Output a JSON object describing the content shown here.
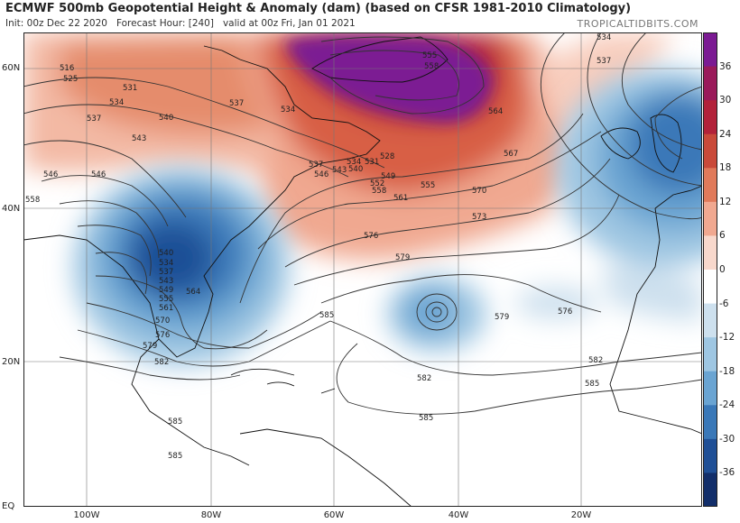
{
  "header": {
    "title": "ECMWF 500mb Geopotential Height & Anomaly (dam) (based on CFSR 1981-2010 Climatology)",
    "init": "Init: 00z Dec 22 2020",
    "forecast_hour": "Forecast Hour: [240]",
    "valid": "valid at 00z Fri, Jan 01 2021",
    "brand": "TROPICALTIDBITS.COM"
  },
  "axes": {
    "lat_labels": [
      "60N",
      "40N",
      "20N",
      "EQ"
    ],
    "lon_labels": [
      "100W",
      "80W",
      "60W",
      "40W",
      "20W"
    ]
  },
  "colorbar": {
    "labels": [
      "36",
      "30",
      "24",
      "18",
      "12",
      "6",
      "0",
      "-6",
      "-12",
      "-18",
      "-24",
      "-30",
      "-36"
    ],
    "colors": [
      "#7b1a93",
      "#9a1a5a",
      "#b2223a",
      "#c94a3a",
      "#e07a5a",
      "#f0a890",
      "#f8d8cc",
      "#ffffff",
      "#cde0ee",
      "#9ec6e2",
      "#6aa4d2",
      "#3a78b8",
      "#1f4f96",
      "#122e6a"
    ]
  },
  "contour_labels": [
    {
      "text": "516"
    },
    {
      "text": "525"
    },
    {
      "text": "531"
    },
    {
      "text": "534"
    },
    {
      "text": "537"
    },
    {
      "text": "540"
    },
    {
      "text": "543"
    },
    {
      "text": "546"
    },
    {
      "text": "537"
    },
    {
      "text": "534"
    },
    {
      "text": "528"
    },
    {
      "text": "531"
    },
    {
      "text": "534"
    },
    {
      "text": "537"
    },
    {
      "text": "540"
    },
    {
      "text": "543"
    },
    {
      "text": "546"
    },
    {
      "text": "549"
    },
    {
      "text": "552"
    },
    {
      "text": "555"
    },
    {
      "text": "558"
    },
    {
      "text": "561"
    },
    {
      "text": "564"
    },
    {
      "text": "567"
    },
    {
      "text": "570"
    },
    {
      "text": "573"
    },
    {
      "text": "576"
    },
    {
      "text": "579"
    },
    {
      "text": "579"
    },
    {
      "text": "576"
    },
    {
      "text": "582"
    },
    {
      "text": "585"
    },
    {
      "text": "585"
    },
    {
      "text": "582"
    },
    {
      "text": "585"
    },
    {
      "text": "558"
    },
    {
      "text": "546"
    },
    {
      "text": "534"
    },
    {
      "text": "537"
    },
    {
      "text": "555"
    },
    {
      "text": "558"
    },
    {
      "text": "540"
    },
    {
      "text": "534"
    },
    {
      "text": "537"
    },
    {
      "text": "543"
    },
    {
      "text": "549"
    },
    {
      "text": "555"
    },
    {
      "text": "561"
    },
    {
      "text": "564"
    },
    {
      "text": "570"
    },
    {
      "text": "576"
    },
    {
      "text": "579"
    },
    {
      "text": "582"
    },
    {
      "text": "585"
    },
    {
      "text": "585"
    }
  ]
}
